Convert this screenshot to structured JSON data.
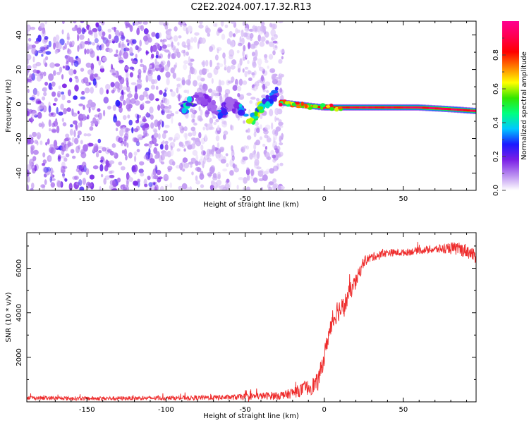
{
  "title": "C2E2.2024.007.17.32.R13",
  "chart_data": [
    {
      "type": "heatmap",
      "xlabel": "Height of straight line (km)",
      "ylabel": "Frequency (Hz)",
      "xlim": [
        -188,
        96
      ],
      "ylim": [
        -50,
        48
      ],
      "xticks": [
        -150,
        -100,
        -50,
        0,
        50
      ],
      "yticks": [
        40,
        20,
        0,
        -20,
        -40
      ],
      "colorbar": {
        "label": "Normalized spectral amplitude",
        "range": [
          0.0,
          1.0
        ],
        "ticks": [
          0.0,
          0.2,
          0.4,
          0.6,
          0.8
        ],
        "tick_labels": [
          "0.0",
          "0.2",
          "0.4",
          "0.6",
          "0.8"
        ],
        "colormap": [
          "#ffffff",
          "#b98cf0",
          "#7a1ee6",
          "#1a1aff",
          "#00c8ff",
          "#00ff80",
          "#32e600",
          "#ffff00",
          "#ff8000",
          "#ff0000",
          "#ff0050",
          "#ff0090"
        ]
      },
      "features": [
        {
          "name": "noise",
          "x_range": [
            -188,
            -100
          ],
          "freq_range": [
            -50,
            48
          ],
          "amplitude": 0.08
        },
        {
          "name": "noise",
          "x_range": [
            -100,
            -26
          ],
          "freq_range": [
            -50,
            48
          ],
          "amplitude": 0.04
        },
        {
          "name": "echo_trace",
          "x": [
            -90,
            -85,
            -80,
            -75,
            -70,
            -65,
            -60,
            -55,
            -50,
            -45,
            -40,
            -35,
            -30
          ],
          "freq": [
            -3,
            0,
            3,
            2,
            -2,
            -5,
            0,
            -2,
            -6,
            -8,
            -2,
            2,
            6
          ],
          "amplitude": [
            0.2,
            0.45,
            0.1,
            0.15,
            0.1,
            0.35,
            0.1,
            0.2,
            0.4,
            0.5,
            0.45,
            0.3,
            0.2
          ]
        },
        {
          "name": "main_line",
          "x": [
            -28,
            -10,
            0,
            20,
            40,
            60,
            80,
            95
          ],
          "freq": [
            1,
            -1,
            -2,
            -2,
            -2,
            -2,
            -3,
            -4
          ],
          "amplitude": [
            0.85,
            0.75,
            0.85,
            0.95,
            0.95,
            0.95,
            0.95,
            0.92
          ]
        }
      ]
    },
    {
      "type": "line",
      "xlabel": "Height of straight line (km)",
      "ylabel": "SNR (10 * v/v)",
      "xlim": [
        -188,
        96
      ],
      "ylim": [
        0,
        7600
      ],
      "xticks": [
        -150,
        -100,
        -50,
        0,
        50
      ],
      "yticks": [
        2000,
        4000,
        6000
      ],
      "series": [
        {
          "color": "#ee2c2c",
          "x": [
            -188,
            -150,
            -100,
            -60,
            -40,
            -25,
            -18,
            -12,
            -8,
            -4,
            0,
            2,
            5,
            8,
            12,
            16,
            20,
            25,
            30,
            40,
            50,
            60,
            70,
            80,
            90,
            96
          ],
          "y": [
            180,
            150,
            170,
            200,
            260,
            300,
            450,
            600,
            700,
            900,
            2000,
            2800,
            3500,
            4100,
            4200,
            4900,
            5400,
            6300,
            6500,
            6700,
            6700,
            6800,
            6850,
            6900,
            6800,
            6500
          ],
          "noise": [
            90,
            90,
            90,
            120,
            160,
            200,
            260,
            320,
            380,
            400,
            420,
            450,
            480,
            520,
            500,
            420,
            330,
            260,
            200,
            170,
            160,
            160,
            180,
            280,
            320,
            300
          ]
        }
      ]
    }
  ]
}
